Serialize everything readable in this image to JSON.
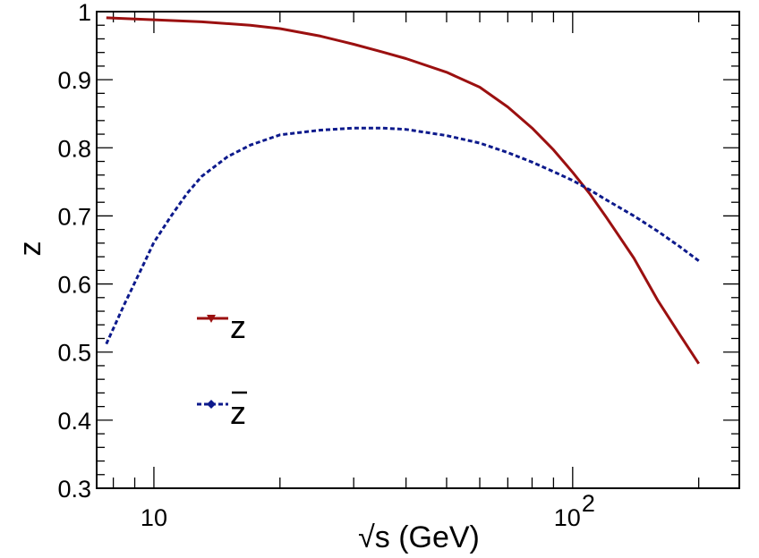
{
  "chart_data": {
    "type": "line",
    "title": "",
    "xlabel": "√s (GeV)",
    "ylabel": "z",
    "xscale": "log",
    "xlim": [
      7.3,
      250
    ],
    "ylim": [
      0.3,
      1.0
    ],
    "x_ticks": [
      {
        "value": 10,
        "base": "10",
        "exp": ""
      },
      {
        "value": 100,
        "base": "10",
        "exp": "2"
      }
    ],
    "y_ticks": [
      {
        "value": 0.3,
        "label": "0.3"
      },
      {
        "value": 0.4,
        "label": "0.4"
      },
      {
        "value": 0.5,
        "label": "0.5"
      },
      {
        "value": 0.6,
        "label": "0.6"
      },
      {
        "value": 0.7,
        "label": "0.7"
      },
      {
        "value": 0.8,
        "label": "0.8"
      },
      {
        "value": 0.9,
        "label": "0.9"
      },
      {
        "value": 1.0,
        "label": "1"
      }
    ],
    "legend": {
      "placement": "left-middle"
    },
    "series": [
      {
        "name": "z",
        "label_base": "z",
        "overbar": false,
        "color": "#9b1010",
        "style": "solid",
        "marker": "triangle-down",
        "x": [
          7.7,
          10,
          13,
          17,
          20,
          25,
          30,
          35,
          40,
          50,
          60,
          70,
          80,
          90,
          100,
          110,
          120,
          140,
          160,
          180,
          200
        ],
        "y": [
          0.991,
          0.988,
          0.985,
          0.98,
          0.975,
          0.964,
          0.952,
          0.941,
          0.931,
          0.911,
          0.889,
          0.86,
          0.829,
          0.797,
          0.764,
          0.732,
          0.699,
          0.638,
          0.575,
          0.526,
          0.483
        ]
      },
      {
        "name": "z̄",
        "label_base": "z",
        "overbar": true,
        "color": "#0d1a8c",
        "style": "dashed",
        "marker": "diamond",
        "x": [
          7.7,
          8.5,
          9.5,
          10,
          11,
          12,
          13,
          15,
          17,
          20,
          25,
          30,
          35,
          40,
          50,
          60,
          70,
          80,
          90,
          100,
          110,
          120,
          140,
          160,
          180,
          200
        ],
        "y": [
          0.512,
          0.57,
          0.632,
          0.661,
          0.7,
          0.733,
          0.758,
          0.787,
          0.804,
          0.819,
          0.826,
          0.829,
          0.829,
          0.827,
          0.818,
          0.807,
          0.793,
          0.779,
          0.765,
          0.752,
          0.738,
          0.724,
          0.7,
          0.677,
          0.655,
          0.634
        ]
      }
    ]
  }
}
